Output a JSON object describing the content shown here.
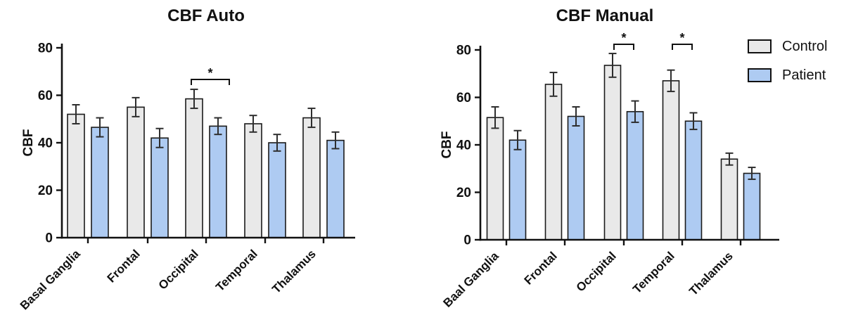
{
  "page": {
    "background": "#ffffff",
    "text_color": "#111111"
  },
  "legend": {
    "items": [
      {
        "label": "Control",
        "color": "#e9e9e9"
      },
      {
        "label": "Patient",
        "color": "#aecbf2"
      }
    ]
  },
  "chart_data": [
    {
      "type": "bar",
      "title": "CBF Auto",
      "xlabel": "",
      "ylabel": "CBF",
      "ylim": [
        0,
        80
      ],
      "yticks": [
        0,
        20,
        40,
        60,
        80
      ],
      "grid": false,
      "categories": [
        "Basal Ganglia",
        "Frontal",
        "Occipital",
        "Temporal",
        "Thalamus"
      ],
      "series": [
        {
          "name": "Control",
          "color": "#e9e9e9",
          "values": [
            52,
            55,
            58.5,
            48,
            50.5
          ],
          "errors": [
            4,
            4,
            4,
            3.5,
            4
          ]
        },
        {
          "name": "Patient",
          "color": "#aecbf2",
          "values": [
            46.5,
            42,
            47,
            40,
            41
          ],
          "errors": [
            4,
            4,
            3.5,
            3.5,
            3.5
          ]
        }
      ],
      "significance": [
        {
          "category": "Occipital",
          "label": "*"
        }
      ],
      "legend_position": "none"
    },
    {
      "type": "bar",
      "title": "CBF Manual",
      "xlabel": "",
      "ylabel": "CBF",
      "ylim": [
        0,
        80
      ],
      "yticks": [
        0,
        20,
        40,
        60,
        80
      ],
      "grid": false,
      "categories": [
        "Baal Ganglia",
        "Frontal",
        "Occipital",
        "Temporal",
        "Thalamus"
      ],
      "series": [
        {
          "name": "Control",
          "color": "#e9e9e9",
          "values": [
            51.5,
            65.5,
            73.5,
            67,
            34
          ],
          "errors": [
            4.5,
            5,
            5,
            4.5,
            2.5
          ]
        },
        {
          "name": "Patient",
          "color": "#aecbf2",
          "values": [
            42,
            52,
            54,
            50,
            28
          ],
          "errors": [
            4,
            4,
            4.5,
            3.5,
            2.5
          ]
        }
      ],
      "significance": [
        {
          "category": "Occipital",
          "label": "*"
        },
        {
          "category": "Temporal",
          "label": "*"
        }
      ],
      "legend_position": "top-right"
    }
  ]
}
